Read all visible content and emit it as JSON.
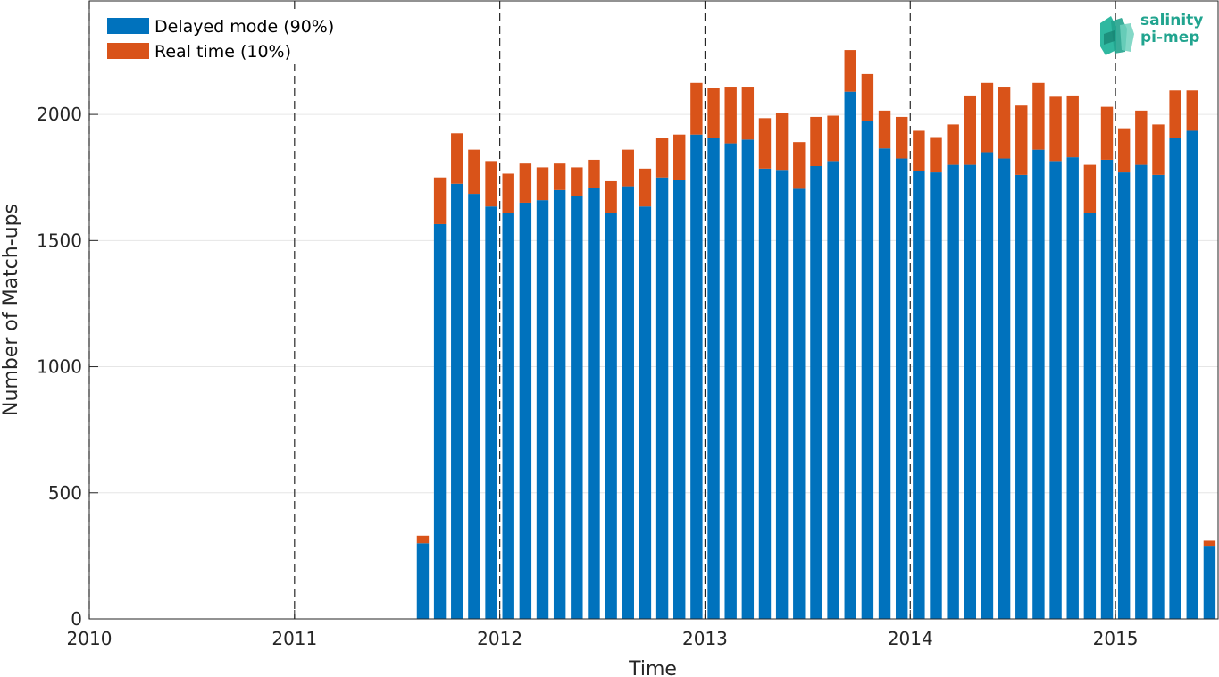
{
  "chart_data": {
    "type": "bar",
    "stacked": true,
    "xlabel": "Time",
    "ylabel": "Number of Match-ups",
    "x_ticks": [
      "2010",
      "2011",
      "2012",
      "2013",
      "2014",
      "2015"
    ],
    "y_ticks": [
      "0",
      "500",
      "1000",
      "1500",
      "2000"
    ],
    "xlim": [
      2010.0,
      2015.5
    ],
    "ylim": [
      0,
      2450
    ],
    "year_divider_lines": [
      2010,
      2011,
      2012,
      2013,
      2014,
      2015
    ],
    "x": [
      "2011-08",
      "2011-09",
      "2011-10",
      "2011-11",
      "2011-12",
      "2012-01",
      "2012-02",
      "2012-03",
      "2012-04",
      "2012-05",
      "2012-06",
      "2012-07",
      "2012-08",
      "2012-09",
      "2012-10",
      "2012-11",
      "2012-12",
      "2013-01",
      "2013-02",
      "2013-03",
      "2013-04",
      "2013-05",
      "2013-06",
      "2013-07",
      "2013-08",
      "2013-09",
      "2013-10",
      "2013-11",
      "2013-12",
      "2014-01",
      "2014-02",
      "2014-03",
      "2014-04",
      "2014-05",
      "2014-06",
      "2014-07",
      "2014-08",
      "2014-09",
      "2014-10",
      "2014-11",
      "2014-12",
      "2015-01",
      "2015-02",
      "2015-03",
      "2015-04",
      "2015-05",
      "2015-06"
    ],
    "series": [
      {
        "name": "Delayed mode (90%)",
        "color": "#0072bd",
        "values": [
          300,
          1565,
          1725,
          1685,
          1635,
          1610,
          1650,
          1660,
          1700,
          1675,
          1710,
          1610,
          1715,
          1635,
          1750,
          1740,
          1920,
          1905,
          1885,
          1900,
          1785,
          1780,
          1705,
          1795,
          1815,
          2090,
          1975,
          1865,
          1825,
          1775,
          1770,
          1800,
          1800,
          1850,
          1825,
          1760,
          1860,
          1815,
          1830,
          1610,
          1820,
          1770,
          1800,
          1760,
          1905,
          1935,
          290
        ]
      },
      {
        "name": "Real time (10%)",
        "color": "#d95319",
        "values": [
          30,
          185,
          200,
          175,
          180,
          155,
          155,
          130,
          105,
          115,
          110,
          125,
          145,
          150,
          155,
          180,
          205,
          200,
          225,
          210,
          200,
          225,
          185,
          195,
          180,
          165,
          185,
          150,
          165,
          160,
          140,
          160,
          275,
          275,
          285,
          275,
          265,
          255,
          245,
          190,
          210,
          175,
          215,
          200,
          190,
          160,
          20
        ]
      }
    ],
    "legend": {
      "placement": "top-left"
    },
    "grid": {
      "y": true,
      "x": false
    }
  },
  "logo": {
    "line1": "salinity",
    "line2": "pi-mep"
  }
}
